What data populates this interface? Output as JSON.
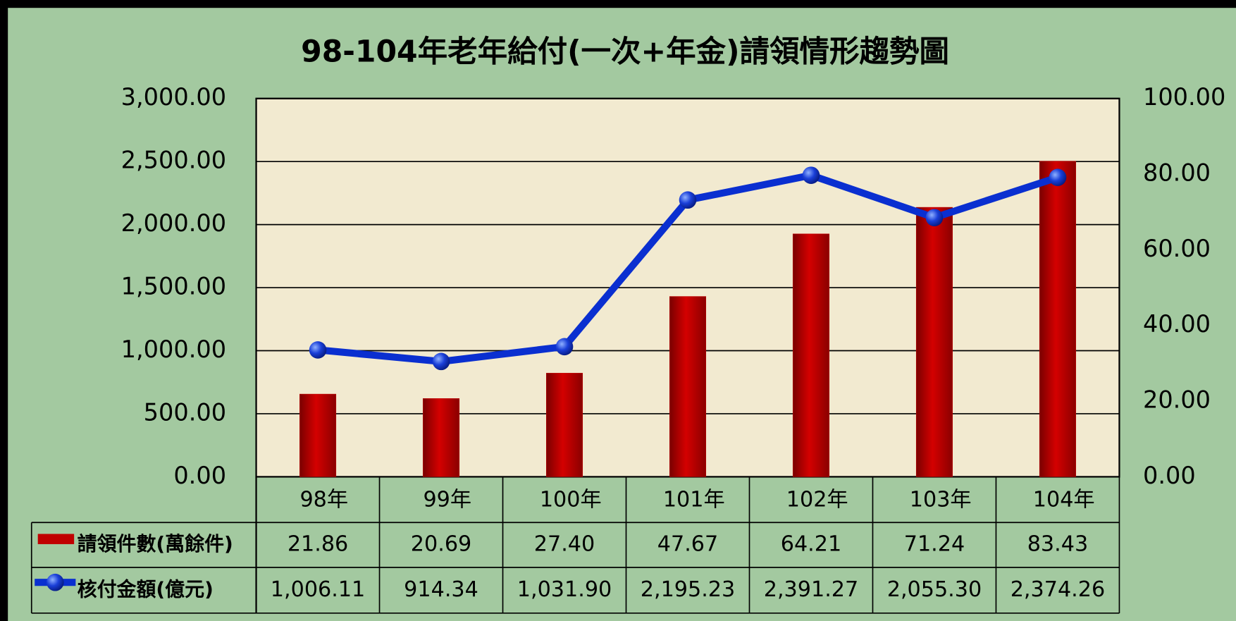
{
  "chart_data": {
    "type": "bar_line",
    "title": "98-104年老年給付(一次+年金)請領情形趨勢圖",
    "categories": [
      "98年",
      "99年",
      "100年",
      "101年",
      "102年",
      "103年",
      "104年"
    ],
    "series": [
      {
        "name": "請領件數(萬餘件)",
        "type": "bar",
        "axis": "y2",
        "color": "#c00000",
        "values": [
          21.86,
          20.69,
          27.4,
          47.67,
          64.21,
          71.24,
          83.43
        ],
        "value_labels": [
          "21.86",
          "20.69",
          "27.40",
          "47.67",
          "64.21",
          "71.24",
          "83.43"
        ]
      },
      {
        "name": "核付金額(億元)",
        "type": "line",
        "axis": "y",
        "color": "#0a2fd0",
        "values": [
          1006.11,
          914.34,
          1031.9,
          2195.23,
          2391.27,
          2055.3,
          2374.26
        ],
        "value_labels": [
          "1,006.11",
          "914.34",
          "1,031.90",
          "2,195.23",
          "2,391.27",
          "2,055.30",
          "2,374.26"
        ]
      }
    ],
    "ylim": [
      0,
      3000
    ],
    "yticks": [
      {
        "value": 0,
        "label": "0.00"
      },
      {
        "value": 500,
        "label": "500.00"
      },
      {
        "value": 1000,
        "label": "1,000.00"
      },
      {
        "value": 1500,
        "label": "1,500.00"
      },
      {
        "value": 2000,
        "label": "2,000.00"
      },
      {
        "value": 2500,
        "label": "2,500.00"
      },
      {
        "value": 3000,
        "label": "3,000.00"
      }
    ],
    "y2lim": [
      0,
      100
    ],
    "y2ticks": [
      {
        "value": 0,
        "label": "0.00"
      },
      {
        "value": 20,
        "label": "20.00"
      },
      {
        "value": 40,
        "label": "40.00"
      },
      {
        "value": 60,
        "label": "60.00"
      },
      {
        "value": 80,
        "label": "80.00"
      },
      {
        "value": 100,
        "label": "100.00"
      }
    ],
    "grid": true
  }
}
